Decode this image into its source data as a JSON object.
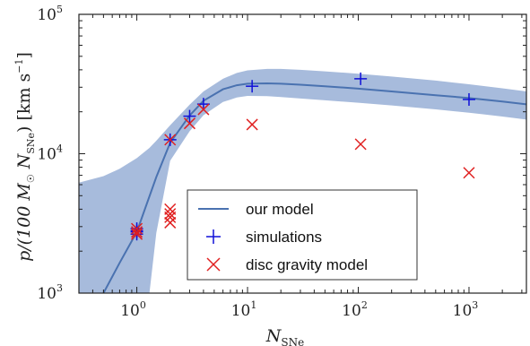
{
  "chart_data": {
    "type": "scatter",
    "x_scale": "log",
    "y_scale": "log",
    "xlim": [
      0.3,
      3300
    ],
    "ylim": [
      1000,
      100000
    ],
    "xlabel": "N_SNe",
    "ylabel": "p/(100 M_☉ N_SNe) [km s⁻¹]",
    "x_ticks": [
      {
        "value": 1,
        "label": "10",
        "exp": "0"
      },
      {
        "value": 10,
        "label": "10",
        "exp": "1"
      },
      {
        "value": 100,
        "label": "10",
        "exp": "2"
      },
      {
        "value": 1000,
        "label": "10",
        "exp": "3"
      }
    ],
    "y_ticks": [
      {
        "value": 1000,
        "label": "10",
        "exp": "3"
      },
      {
        "value": 10000,
        "label": "10",
        "exp": "4"
      },
      {
        "value": 100000,
        "label": "10",
        "exp": "5"
      }
    ],
    "colors": {
      "model": "#4a72b0",
      "band": "#a7bbdc",
      "simulations": "#1010d8",
      "disc": "#e02020"
    },
    "series": [
      {
        "name": "our model",
        "kind": "line",
        "x": [
          0.5,
          0.7,
          1.0,
          1.5,
          2.0,
          3.0,
          4.0,
          6.0,
          8.0,
          10,
          15,
          20,
          30,
          50,
          100,
          200,
          500,
          1000,
          2000,
          3300
        ],
        "y": [
          1000,
          1650,
          2750,
          6800,
          12000,
          18800,
          24000,
          29000,
          31000,
          31800,
          32000,
          31800,
          31300,
          30500,
          29300,
          28000,
          26300,
          25100,
          23700,
          22600
        ]
      },
      {
        "name": "model range",
        "kind": "band",
        "x": [
          0.3,
          0.5,
          0.7,
          1.0,
          1.3,
          1.5,
          2.0,
          3.0,
          4.0,
          6.0,
          8.0,
          10,
          15,
          20,
          30,
          50,
          100,
          200,
          500,
          1000,
          2000,
          3300
        ],
        "upper": [
          6200,
          6900,
          7800,
          9300,
          11000,
          12400,
          16000,
          22500,
          28000,
          34500,
          38000,
          39600,
          40600,
          40600,
          40000,
          39000,
          37500,
          35800,
          33500,
          31500,
          29500,
          28000
        ],
        "lower": [
          null,
          null,
          null,
          null,
          1000,
          2700,
          8900,
          14500,
          18900,
          23500,
          25300,
          26000,
          25900,
          25500,
          24900,
          24200,
          23200,
          22200,
          20800,
          19700,
          18500,
          17600
        ]
      },
      {
        "name": "simulations",
        "kind": "plus",
        "x": [
          1,
          1,
          1,
          1,
          2,
          3,
          4,
          11,
          105,
          1000
        ],
        "y": [
          2900,
          2750,
          2650,
          2800,
          12600,
          18600,
          22700,
          30500,
          34500,
          24500
        ]
      },
      {
        "name": "disc gravity model",
        "kind": "x",
        "x": [
          1,
          1,
          1,
          2,
          2,
          2,
          2,
          2,
          3,
          4,
          11,
          105,
          1000
        ],
        "y": [
          2900,
          2750,
          2650,
          4000,
          3700,
          3500,
          3200,
          12600,
          16500,
          20800,
          16200,
          11700,
          7300
        ]
      }
    ],
    "legend": {
      "position": "lower-right",
      "items": [
        {
          "label": "our model",
          "marker": "line"
        },
        {
          "label": "simulations",
          "marker": "plus"
        },
        {
          "label": "disc gravity model",
          "marker": "x"
        }
      ]
    }
  }
}
